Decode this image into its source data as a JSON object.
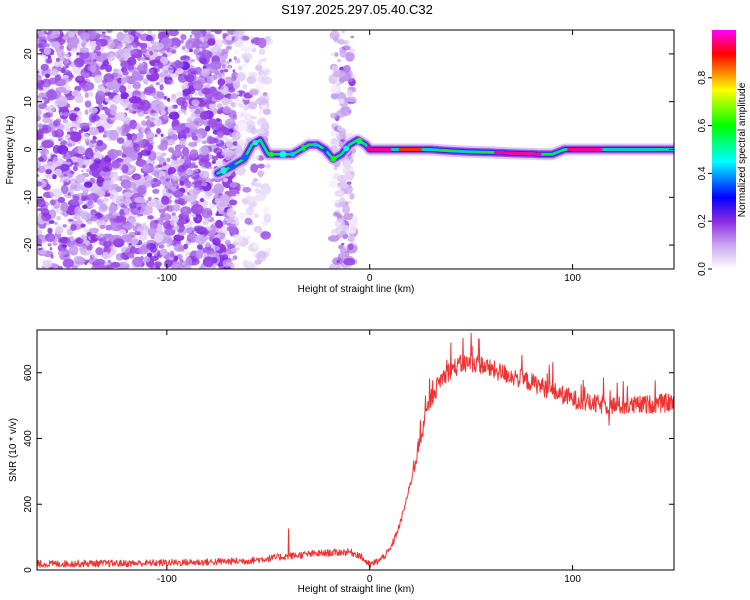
{
  "figure_title": "S197.2025.297.05.40.C32",
  "chart_data": [
    {
      "type": "heatmap",
      "name": "spectrogram",
      "xlabel": "Height of straight line (km)",
      "ylabel": "Frequency (Hz)",
      "xlim": [
        -164,
        150
      ],
      "ylim": [
        -25,
        25
      ],
      "xticks": [
        -100,
        0,
        100
      ],
      "yticks": [
        -20,
        -10,
        0,
        10,
        20
      ],
      "grid": false,
      "colorbar": {
        "label": "Normalized spectral amplitude",
        "range": [
          0,
          1
        ],
        "ticks": [
          0.0,
          0.2,
          0.4,
          0.6,
          0.8
        ],
        "tick_labels": [
          "0.0",
          "0.2",
          "0.4",
          "0.6",
          "0.8"
        ],
        "colormap": [
          "#ffffff",
          "#c9a6f0",
          "#8a2be2",
          "#0000ff",
          "#00ffff",
          "#00ff00",
          "#ffff00",
          "#ff0000",
          "#ff00ff"
        ]
      },
      "ridge": {
        "x": [
          -75,
          -70,
          -66,
          -62,
          -58,
          -54,
          -50,
          -46,
          -42,
          -38,
          -34,
          -30,
          -26,
          -22,
          -18,
          -14,
          -10,
          -6,
          -2,
          0,
          10,
          20,
          30,
          40,
          50,
          60,
          70,
          80,
          84,
          90,
          96,
          100,
          110,
          120,
          130,
          140,
          150
        ],
        "y": [
          -5,
          -4,
          -3,
          -2,
          1,
          2,
          -1,
          -1,
          -1,
          -1,
          0,
          1,
          1,
          0,
          -2,
          -1,
          1,
          2,
          1,
          0,
          0,
          0,
          0,
          -0.3,
          -0.5,
          -0.6,
          -0.8,
          -0.9,
          -1,
          -1,
          0,
          0,
          0,
          0,
          0,
          0,
          0
        ],
        "peak_amplitude_segments": [
          {
            "x": [
              -1,
              10
            ],
            "amplitude": 0.95
          },
          {
            "x": [
              15,
              25
            ],
            "amplitude": 0.85
          },
          {
            "x": [
              62,
              84
            ],
            "amplitude": 0.95
          },
          {
            "x": [
              98,
              114
            ],
            "amplitude": 0.95
          }
        ]
      },
      "noise_regions": [
        {
          "x": [
            -164,
            -66
          ],
          "y": [
            -25,
            25
          ],
          "amplitude": 0.25
        },
        {
          "x": [
            -66,
            -50
          ],
          "y": [
            -25,
            25
          ],
          "amplitude": 0.1
        },
        {
          "x": [
            -18,
            -8
          ],
          "y": [
            -25,
            25
          ],
          "amplitude": 0.15
        }
      ]
    },
    {
      "type": "line",
      "name": "snr",
      "xlabel": "Height of straight line (km)",
      "ylabel": "SNR (10 * v/v)",
      "xlim": [
        -164,
        150
      ],
      "ylim": [
        0,
        730
      ],
      "xticks": [
        -100,
        0,
        100
      ],
      "yticks": [
        0,
        200,
        400,
        600
      ],
      "grid": false,
      "color": "#ee3333",
      "x": [
        -164,
        -140,
        -120,
        -100,
        -80,
        -60,
        -50,
        -40,
        -30,
        -20,
        -10,
        -5,
        0,
        5,
        10,
        15,
        20,
        25,
        30,
        35,
        40,
        45,
        50,
        55,
        60,
        70,
        80,
        90,
        100,
        110,
        120,
        130,
        140,
        150
      ],
      "y": [
        18,
        20,
        20,
        22,
        24,
        28,
        35,
        42,
        48,
        52,
        55,
        45,
        15,
        30,
        60,
        140,
        260,
        400,
        520,
        580,
        610,
        625,
        630,
        625,
        610,
        590,
        570,
        545,
        520,
        505,
        500,
        500,
        505,
        510
      ],
      "noise_amplitude": 18,
      "spikes": [
        {
          "x": -40,
          "y": 125
        },
        {
          "x": 50,
          "y": 720
        },
        {
          "x": 46,
          "y": 705
        },
        {
          "x": 54,
          "y": 700
        },
        {
          "x": 40,
          "y": 690
        },
        {
          "x": 118,
          "y": 440
        }
      ]
    }
  ]
}
